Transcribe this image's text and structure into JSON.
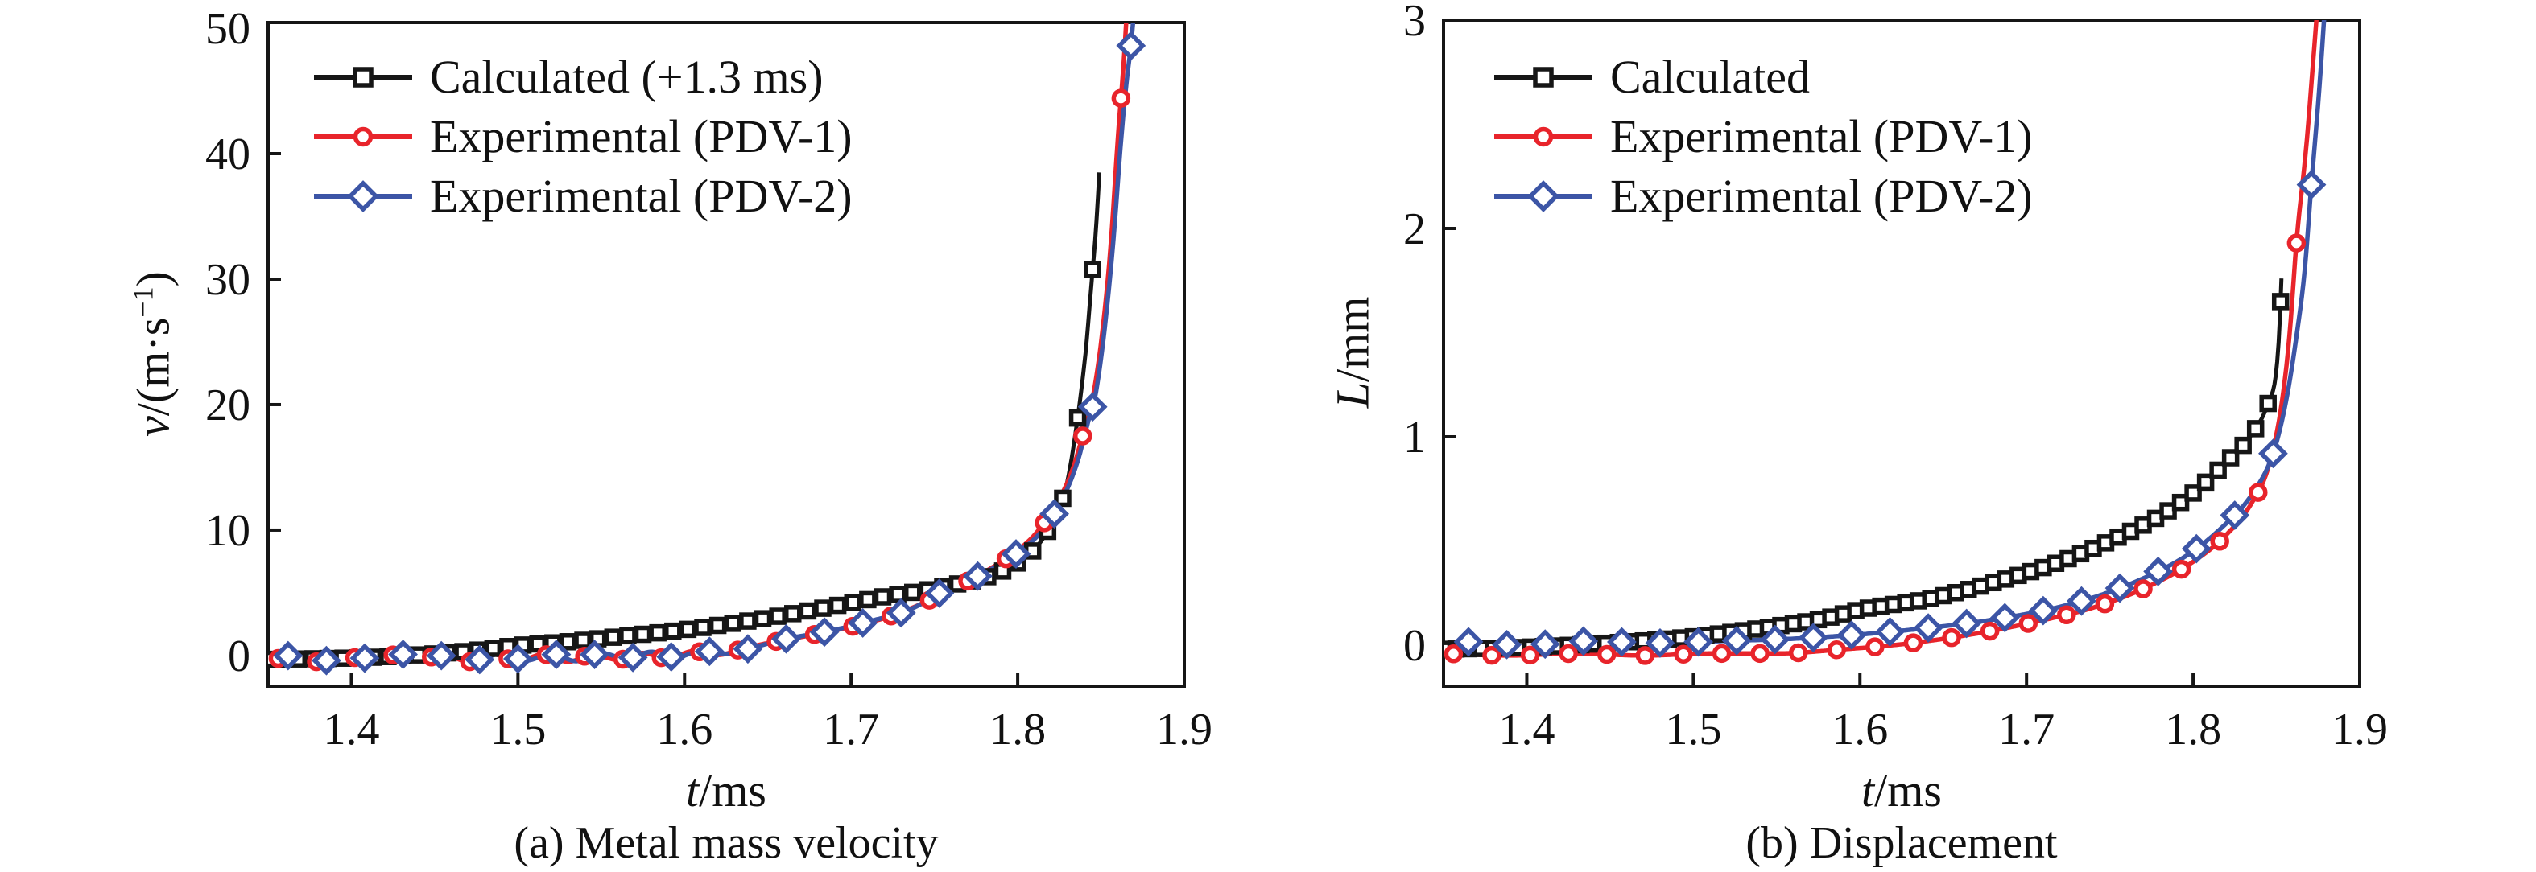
{
  "page": {
    "background": "#ffffff",
    "series_colors": {
      "calculated": "#161616",
      "pdv1": "#e8242b",
      "pdv2": "#3c55a6"
    }
  },
  "chart_data": [
    {
      "id": "a",
      "type": "line",
      "caption": "(a) Metal mass velocity",
      "xlabel": {
        "var": "t",
        "rest": "/ms",
        "sup": "",
        "end": ""
      },
      "ylabel": {
        "var": "v",
        "rest": "/(m·s",
        "sup": "−1",
        "end": ")"
      },
      "x_range": [
        1.35,
        1.9
      ],
      "y_range": [
        -2.44,
        50.45
      ],
      "grid": false,
      "legend_position": "top-left",
      "x_ticks": {
        "values": [
          1.4,
          1.5,
          1.6,
          1.7,
          1.8,
          1.9
        ],
        "labels": [
          "1.4",
          "1.5",
          "1.6",
          "1.7",
          "1.8",
          "1.9"
        ],
        "marks": [
          true,
          true,
          true,
          true,
          true,
          false
        ]
      },
      "y_ticks": {
        "values": [
          0,
          10,
          20,
          30,
          40,
          50
        ],
        "labels": [
          "0",
          "10",
          "20",
          "30",
          "40",
          "50"
        ],
        "marks": [
          true,
          true,
          true,
          true,
          true,
          false
        ]
      },
      "series": [
        {
          "name": "Calculated (+1.3 ms)",
          "color": "#161616",
          "marker": "square",
          "marker_interval": 0.009,
          "marker_offset": 0.0,
          "points": [
            [
              1.35,
              -0.3
            ],
            [
              1.38,
              -0.25
            ],
            [
              1.41,
              -0.15
            ],
            [
              1.44,
              0.05
            ],
            [
              1.47,
              0.35
            ],
            [
              1.5,
              0.8
            ],
            [
              1.53,
              1.1
            ],
            [
              1.56,
              1.5
            ],
            [
              1.59,
              1.9
            ],
            [
              1.62,
              2.4
            ],
            [
              1.65,
              3.0
            ],
            [
              1.68,
              3.7
            ],
            [
              1.7,
              4.2
            ],
            [
              1.72,
              4.7
            ],
            [
              1.74,
              5.1
            ],
            [
              1.76,
              5.6
            ],
            [
              1.78,
              6.2
            ],
            [
              1.795,
              7.0
            ],
            [
              1.808,
              8.2
            ],
            [
              1.818,
              9.9
            ],
            [
              1.825,
              11.8
            ],
            [
              1.83,
              14.0
            ],
            [
              1.835,
              18.0
            ],
            [
              1.8385,
              21.5
            ],
            [
              1.841,
              24.5
            ],
            [
              1.8445,
              30.0
            ],
            [
              1.847,
              34.0
            ],
            [
              1.849,
              38.5
            ]
          ]
        },
        {
          "name": "Experimental (PDV-1)",
          "color": "#e8242b",
          "marker": "circle",
          "marker_interval": 0.023,
          "marker_offset": 0.006,
          "points": [
            [
              1.35,
              -0.55
            ],
            [
              1.365,
              0.1
            ],
            [
              1.38,
              -0.5
            ],
            [
              1.395,
              0.15
            ],
            [
              1.41,
              -0.55
            ],
            [
              1.425,
              0.05
            ],
            [
              1.44,
              -0.45
            ],
            [
              1.455,
              0.15
            ],
            [
              1.47,
              -0.5
            ],
            [
              1.485,
              0.1
            ],
            [
              1.5,
              -0.45
            ],
            [
              1.515,
              0.1
            ],
            [
              1.53,
              -0.5
            ],
            [
              1.545,
              0.1
            ],
            [
              1.56,
              -0.35
            ],
            [
              1.575,
              0.2
            ],
            [
              1.59,
              -0.25
            ],
            [
              1.605,
              0.35
            ],
            [
              1.62,
              0.05
            ],
            [
              1.635,
              0.55
            ],
            [
              1.65,
              1.0
            ],
            [
              1.675,
              1.6
            ],
            [
              1.7,
              2.3
            ],
            [
              1.725,
              3.2
            ],
            [
              1.75,
              4.6
            ],
            [
              1.775,
              6.3
            ],
            [
              1.795,
              7.9
            ],
            [
              1.81,
              9.6
            ],
            [
              1.822,
              11.8
            ],
            [
              1.832,
              14.5
            ],
            [
              1.839,
              17.5
            ],
            [
              1.845,
              20.5
            ],
            [
              1.851,
              26.0
            ],
            [
              1.856,
              33.0
            ],
            [
              1.86,
              41.0
            ],
            [
              1.864,
              48.0
            ],
            [
              1.867,
              55.0
            ]
          ]
        },
        {
          "name": "Experimental (PDV-2)",
          "color": "#3c55a6",
          "marker": "diamond",
          "marker_interval": 0.023,
          "marker_offset": 0.012,
          "points": [
            [
              1.355,
              -0.3
            ],
            [
              1.37,
              0.2
            ],
            [
              1.385,
              -0.4
            ],
            [
              1.4,
              0.1
            ],
            [
              1.415,
              -0.45
            ],
            [
              1.43,
              0.1
            ],
            [
              1.445,
              -0.4
            ],
            [
              1.46,
              0.2
            ],
            [
              1.475,
              -0.35
            ],
            [
              1.49,
              0.15
            ],
            [
              1.505,
              -0.4
            ],
            [
              1.52,
              0.15
            ],
            [
              1.535,
              -0.45
            ],
            [
              1.55,
              0.2
            ],
            [
              1.565,
              -0.25
            ],
            [
              1.58,
              0.3
            ],
            [
              1.595,
              -0.15
            ],
            [
              1.61,
              0.4
            ],
            [
              1.625,
              0.15
            ],
            [
              1.64,
              0.6
            ],
            [
              1.66,
              1.3
            ],
            [
              1.685,
              1.9
            ],
            [
              1.71,
              2.7
            ],
            [
              1.735,
              3.65
            ],
            [
              1.755,
              5.1
            ],
            [
              1.78,
              6.6
            ],
            [
              1.8,
              8.2
            ],
            [
              1.815,
              10.0
            ],
            [
              1.827,
              12.5
            ],
            [
              1.836,
              15.5
            ],
            [
              1.842,
              18.5
            ],
            [
              1.847,
              21.0
            ],
            [
              1.853,
              27.0
            ],
            [
              1.858,
              34.0
            ],
            [
              1.862,
              41.0
            ],
            [
              1.866,
              46.5
            ],
            [
              1.868,
              48.6
            ],
            [
              1.872,
              55.0
            ]
          ]
        }
      ]
    },
    {
      "id": "b",
      "type": "line",
      "caption": "(b) Displacement",
      "xlabel": {
        "var": "t",
        "rest": "/ms",
        "sup": "",
        "end": ""
      },
      "ylabel": {
        "var": "L",
        "rest": "/mm",
        "sup": "",
        "end": ""
      },
      "x_range": [
        1.35,
        1.9
      ],
      "y_range": [
        -0.197,
        3.0
      ],
      "grid": false,
      "legend_position": "top-left",
      "x_ticks": {
        "values": [
          1.4,
          1.5,
          1.6,
          1.7,
          1.8,
          1.9
        ],
        "labels": [
          "1.4",
          "1.5",
          "1.6",
          "1.7",
          "1.8",
          "1.9"
        ],
        "marks": [
          true,
          true,
          true,
          true,
          true,
          false
        ]
      },
      "y_ticks": {
        "values": [
          0,
          1,
          2,
          3
        ],
        "labels": [
          "0",
          "1",
          "2",
          "3"
        ],
        "marks": [
          true,
          true,
          true,
          false
        ]
      },
      "series": [
        {
          "name": "Calculated",
          "color": "#161616",
          "marker": "square",
          "marker_interval": 0.0075,
          "marker_offset": 0.0,
          "points": [
            [
              1.35,
              -0.02
            ],
            [
              1.4,
              -0.01
            ],
            [
              1.45,
              0.01
            ],
            [
              1.5,
              0.04
            ],
            [
              1.54,
              0.08
            ],
            [
              1.58,
              0.13
            ],
            [
              1.6,
              0.17
            ],
            [
              1.64,
              0.22
            ],
            [
              1.68,
              0.3
            ],
            [
              1.72,
              0.4
            ],
            [
              1.75,
              0.5
            ],
            [
              1.78,
              0.62
            ],
            [
              1.8,
              0.73
            ],
            [
              1.82,
              0.88
            ],
            [
              1.835,
              1.01
            ],
            [
              1.845,
              1.16
            ],
            [
              1.85,
              1.32
            ],
            [
              1.852,
              1.55
            ],
            [
              1.853,
              1.76
            ]
          ]
        },
        {
          "name": "Experimental (PDV-1)",
          "color": "#e8242b",
          "marker": "circle",
          "marker_interval": 0.023,
          "marker_offset": 0.006,
          "points": [
            [
              1.35,
              -0.04
            ],
            [
              1.39,
              -0.05
            ],
            [
              1.43,
              -0.04
            ],
            [
              1.47,
              -0.05
            ],
            [
              1.51,
              -0.04
            ],
            [
              1.55,
              -0.04
            ],
            [
              1.59,
              -0.02
            ],
            [
              1.62,
              0.0
            ],
            [
              1.65,
              0.03
            ],
            [
              1.68,
              0.07
            ],
            [
              1.71,
              0.12
            ],
            [
              1.74,
              0.18
            ],
            [
              1.77,
              0.27
            ],
            [
              1.8,
              0.4
            ],
            [
              1.82,
              0.53
            ],
            [
              1.835,
              0.68
            ],
            [
              1.845,
              0.85
            ],
            [
              1.853,
              1.15
            ],
            [
              1.858,
              1.5
            ],
            [
              1.862,
              1.93
            ],
            [
              1.868,
              2.4
            ],
            [
              1.874,
              3.0
            ],
            [
              1.878,
              3.4
            ]
          ]
        },
        {
          "name": "Experimental (PDV-2)",
          "color": "#3c55a6",
          "marker": "diamond",
          "marker_interval": 0.023,
          "marker_offset": 0.015,
          "points": [
            [
              1.358,
              0.02
            ],
            [
              1.398,
              0.0
            ],
            [
              1.438,
              0.02
            ],
            [
              1.478,
              0.01
            ],
            [
              1.518,
              0.02
            ],
            [
              1.558,
              0.03
            ],
            [
              1.598,
              0.05
            ],
            [
              1.638,
              0.08
            ],
            [
              1.678,
              0.12
            ],
            [
              1.718,
              0.18
            ],
            [
              1.748,
              0.25
            ],
            [
              1.778,
              0.35
            ],
            [
              1.798,
              0.44
            ],
            [
              1.818,
              0.57
            ],
            [
              1.835,
              0.72
            ],
            [
              1.848,
              0.92
            ],
            [
              1.856,
              1.18
            ],
            [
              1.862,
              1.48
            ],
            [
              1.867,
              1.8
            ],
            [
              1.871,
              2.21
            ],
            [
              1.876,
              2.7
            ],
            [
              1.881,
              3.3
            ]
          ]
        }
      ]
    }
  ]
}
